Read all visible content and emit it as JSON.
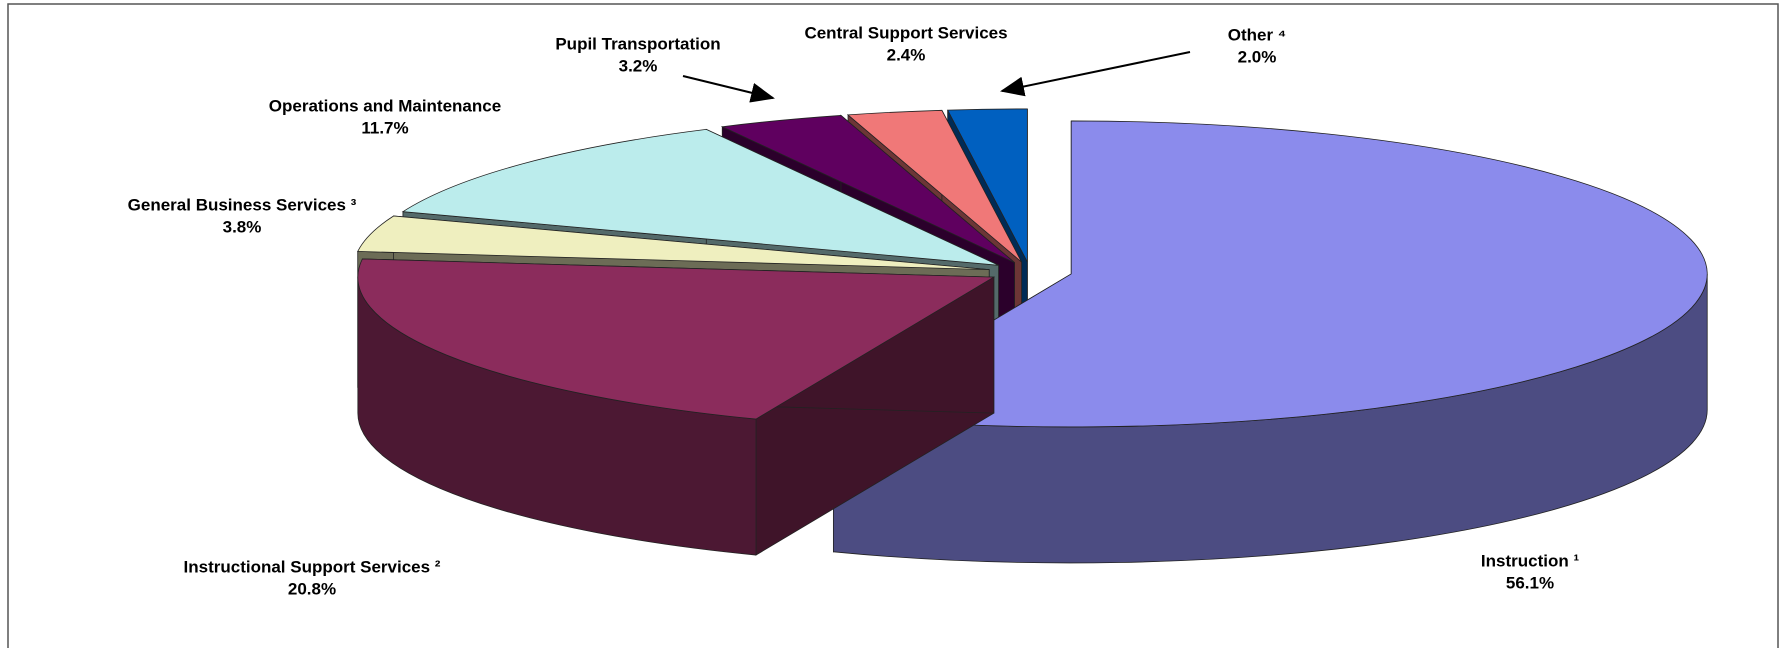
{
  "chart_data": {
    "type": "pie3d",
    "categories": [
      "Instruction ¹",
      "Instructional Support Services ²",
      "General Business Services ³",
      "Operations and Maintenance",
      "Pupil Transportation",
      "Central Support Services",
      "Other ⁴"
    ],
    "values": [
      56.1,
      20.8,
      3.8,
      11.7,
      3.2,
      2.4,
      2.0
    ],
    "value_labels": [
      "56.1%",
      "20.8%",
      "3.8%",
      "11.7%",
      "3.2%",
      "2.4%",
      "2.0%"
    ],
    "colors": [
      "#8b8bec",
      "#8b2c5c",
      "#efefbf",
      "#bbecec",
      "#5f005f",
      "#f07878",
      "#0060c0"
    ]
  }
}
